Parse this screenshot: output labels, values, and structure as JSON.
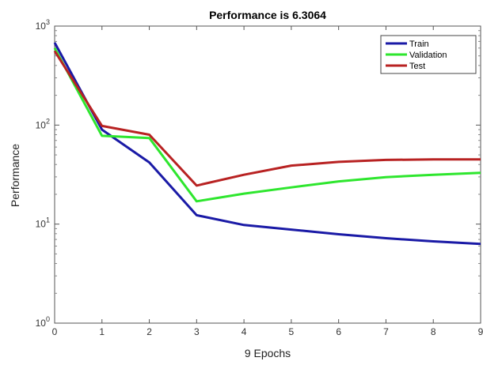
{
  "chart_data": {
    "type": "line",
    "title": "Performance is 6.3064",
    "xlabel": "9 Epochs",
    "ylabel": "Performance",
    "y_scale": "log",
    "xlim": [
      0,
      9
    ],
    "ylim": [
      1,
      1000
    ],
    "x_ticks": [
      "0",
      "1",
      "2",
      "3",
      "4",
      "5",
      "6",
      "7",
      "8",
      "9"
    ],
    "y_ticks": [
      {
        "base": "10",
        "exp": "0"
      },
      {
        "base": "10",
        "exp": "1"
      },
      {
        "base": "10",
        "exp": "2"
      },
      {
        "base": "10",
        "exp": "3"
      }
    ],
    "grid": false,
    "legend_position": "top-right",
    "x": [
      0,
      1,
      2,
      3,
      4,
      5,
      6,
      7,
      8,
      9
    ],
    "series": [
      {
        "name": "Train",
        "color": "#1a1aa6",
        "values": [
          680,
          90,
          42,
          12.3,
          9.8,
          8.8,
          7.9,
          7.2,
          6.7,
          6.3
        ]
      },
      {
        "name": "Validation",
        "color": "#2ee62e",
        "values": [
          600,
          78,
          74,
          17,
          20.3,
          23.5,
          27,
          29.8,
          31.5,
          33
        ]
      },
      {
        "name": "Test",
        "color": "#b82222",
        "values": [
          560,
          98,
          80,
          24.5,
          31.5,
          39,
          42.5,
          44.5,
          45,
          45
        ]
      }
    ]
  }
}
